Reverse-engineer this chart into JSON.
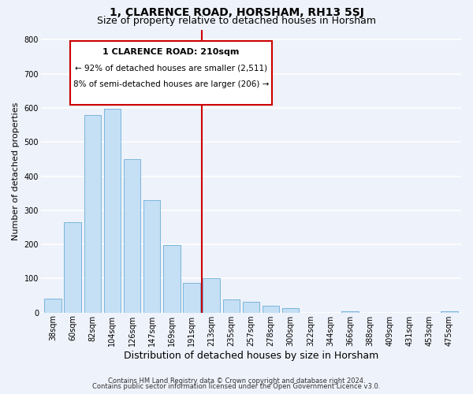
{
  "title": "1, CLARENCE ROAD, HORSHAM, RH13 5SJ",
  "subtitle": "Size of property relative to detached houses in Horsham",
  "xlabel": "Distribution of detached houses by size in Horsham",
  "ylabel": "Number of detached properties",
  "bar_labels": [
    "38sqm",
    "60sqm",
    "82sqm",
    "104sqm",
    "126sqm",
    "147sqm",
    "169sqm",
    "191sqm",
    "213sqm",
    "235sqm",
    "257sqm",
    "278sqm",
    "300sqm",
    "322sqm",
    "344sqm",
    "366sqm",
    "388sqm",
    "409sqm",
    "431sqm",
    "453sqm",
    "475sqm"
  ],
  "bar_values": [
    40,
    265,
    580,
    597,
    450,
    330,
    197,
    88,
    100,
    38,
    32,
    20,
    12,
    0,
    0,
    5,
    0,
    0,
    0,
    0,
    5
  ],
  "bar_color": "#c5dff5",
  "bar_edge_color": "#6baed6",
  "vline_color": "#cc0000",
  "annotation_title": "1 CLARENCE ROAD: 210sqm",
  "annotation_line1": "← 92% of detached houses are smaller (2,511)",
  "annotation_line2": "8% of semi-detached houses are larger (206) →",
  "annotation_box_color": "#ffffff",
  "annotation_box_edge": "#cc0000",
  "ylim": [
    0,
    830
  ],
  "yticks": [
    0,
    100,
    200,
    300,
    400,
    500,
    600,
    700,
    800
  ],
  "footer_line1": "Contains HM Land Registry data © Crown copyright and database right 2024.",
  "footer_line2": "Contains public sector information licensed under the Open Government Licence v3.0.",
  "background_color": "#eef2fa",
  "grid_color": "#ffffff",
  "title_fontsize": 10,
  "subtitle_fontsize": 9,
  "xlabel_fontsize": 9,
  "ylabel_fontsize": 8,
  "tick_fontsize": 7,
  "footer_fontsize": 6,
  "annot_title_fontsize": 8,
  "annot_text_fontsize": 7.5
}
